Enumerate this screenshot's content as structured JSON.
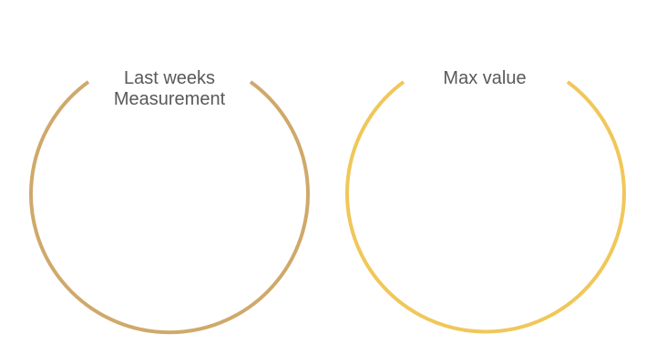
{
  "panels": [
    {
      "title_lines": [
        "Last weeks",
        "Measurement"
      ],
      "ring_color": "#CFA96B"
    },
    {
      "title_lines": [
        "Max value"
      ],
      "ring_color": "#F0C75A"
    }
  ],
  "text_color": "#595959",
  "background": "#FFFFFF"
}
